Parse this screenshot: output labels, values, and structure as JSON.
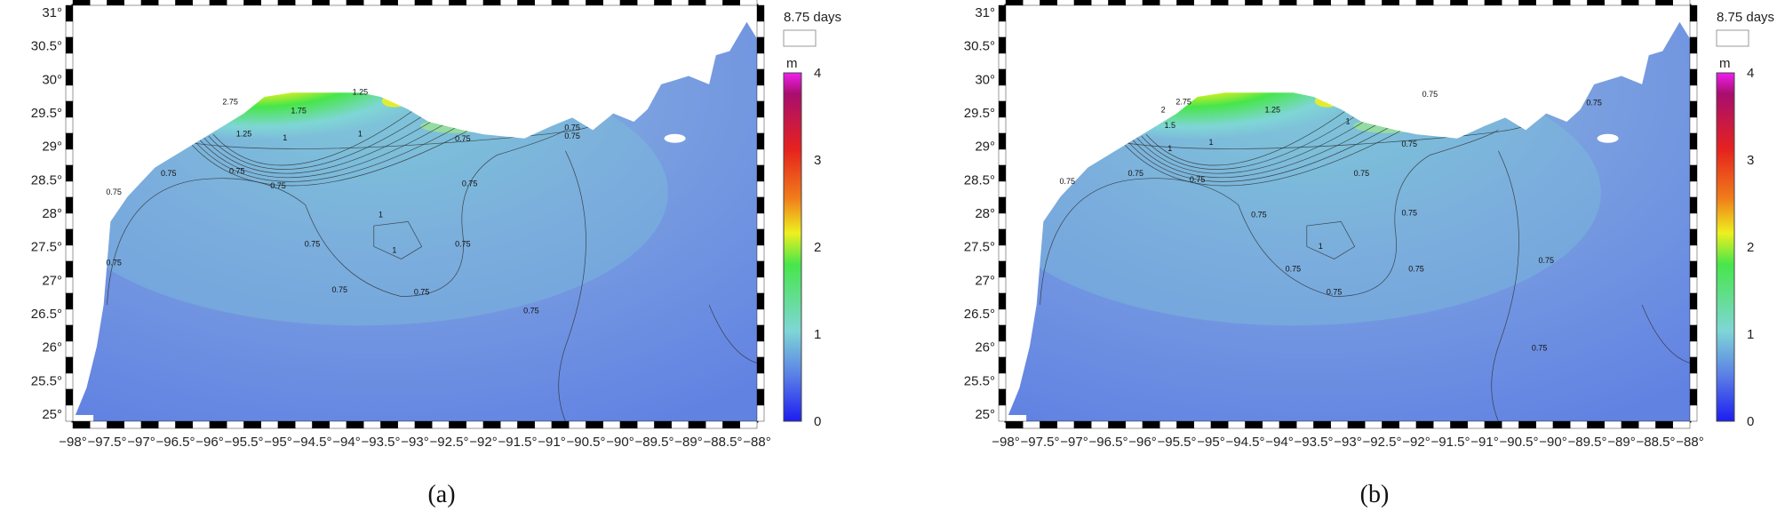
{
  "colors": {
    "ocean_base": "#6b87e0",
    "ocean_light": "#7fc8d8",
    "colormap": [
      "#1d1df0",
      "#5a7ee6",
      "#7fd6d6",
      "#47e64a",
      "#eef01e",
      "#f07d1a",
      "#e6221e",
      "#a80e6e",
      "#f01ef0"
    ],
    "land": "#ffffff",
    "contour": "#2a2a2a",
    "frame_dark": "#000000",
    "frame_light": "#ffffff"
  },
  "panels": [
    {
      "label": "(a)",
      "time_label": "8.75 days",
      "contours": [
        "2.75",
        "1.75",
        "1.25",
        "1.25",
        "1",
        "1",
        "0.75",
        "0.75",
        "0.75",
        "0.75",
        "0.75",
        "0.75",
        "1",
        "1",
        "0.75",
        "0.75",
        "0.75",
        "0.75",
        "0.75",
        "0.75",
        "0.75",
        "0.75"
      ]
    },
    {
      "label": "(b)",
      "time_label": "8.75 days",
      "contours": [
        "2.75",
        "2",
        "1.5",
        "1.25",
        "1",
        "1",
        "1",
        "0.75",
        "0.75",
        "0.75",
        "0.75",
        "0.75",
        "0.75",
        "0.75",
        "1",
        "0.75",
        "0.75",
        "0.75",
        "0.75",
        "0.75",
        "0.75",
        "0.75"
      ]
    }
  ],
  "axes": {
    "lat_ticks": [
      "31°",
      "30.5°",
      "30°",
      "29.5°",
      "29°",
      "28.5°",
      "28°",
      "27.5°",
      "27°",
      "26.5°",
      "26°",
      "25.5°",
      "25°"
    ],
    "lon_ticks": [
      "−98°",
      "−97.5°",
      "−97°",
      "−96.5°",
      "−96°",
      "−95.5°",
      "−95°",
      "−94.5°",
      "−94°",
      "−93.5°",
      "−93°",
      "−92.5°",
      "−92°",
      "−91.5°",
      "−91°",
      "−90.5°",
      "−90°",
      "−89.5°",
      "−89°",
      "−88.5°",
      "−88°"
    ]
  },
  "colorbar": {
    "unit": "m",
    "ticks": [
      "4",
      "3",
      "2",
      "1",
      "0"
    ]
  }
}
